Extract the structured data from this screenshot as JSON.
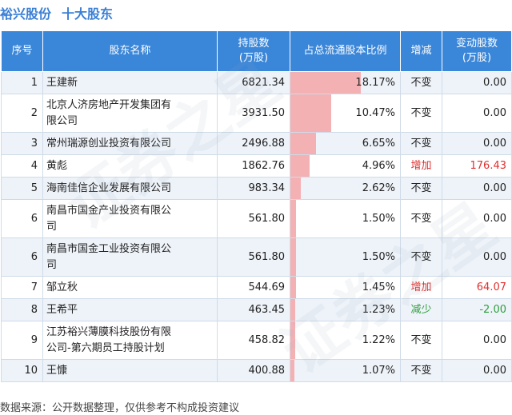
{
  "header": {
    "stock_name": "裕兴股份",
    "section_title": "十大股东"
  },
  "columns": [
    "序号",
    "股东名称",
    "持股数\n(万股)",
    "占总流通股本比例",
    "增减",
    "变动股数\n(万股)"
  ],
  "chart_data": {
    "type": "table",
    "rows": [
      {
        "rank": "1",
        "name": "王建新",
        "shares": "6821.34",
        "ratio": 18.17,
        "ratio_text": "18.17%",
        "change": "不变",
        "change_dir": "same",
        "delta": "0.00"
      },
      {
        "rank": "2",
        "name": "北京人济房地产开发集团有\n限公司",
        "shares": "3931.50",
        "ratio": 10.47,
        "ratio_text": "10.47%",
        "change": "不变",
        "change_dir": "same",
        "delta": "0.00"
      },
      {
        "rank": "3",
        "name": "常州瑞源创业投资有限公司",
        "shares": "2496.88",
        "ratio": 6.65,
        "ratio_text": "6.65%",
        "change": "不变",
        "change_dir": "same",
        "delta": "0.00"
      },
      {
        "rank": "4",
        "name": "黄彪",
        "shares": "1862.76",
        "ratio": 4.96,
        "ratio_text": "4.96%",
        "change": "增加",
        "change_dir": "up",
        "delta": "176.43"
      },
      {
        "rank": "5",
        "name": "海南佳信企业发展有限公司",
        "shares": "983.34",
        "ratio": 2.62,
        "ratio_text": "2.62%",
        "change": "不变",
        "change_dir": "same",
        "delta": "0.00"
      },
      {
        "rank": "6",
        "name": "南昌市国金产业投资有限公\n司",
        "shares": "561.80",
        "ratio": 1.5,
        "ratio_text": "1.50%",
        "change": "不变",
        "change_dir": "same",
        "delta": "0.00"
      },
      {
        "rank": "6",
        "name": "南昌市国金工业投资有限公\n司",
        "shares": "561.80",
        "ratio": 1.5,
        "ratio_text": "1.50%",
        "change": "不变",
        "change_dir": "same",
        "delta": "0.00"
      },
      {
        "rank": "7",
        "name": "邹立秋",
        "shares": "544.69",
        "ratio": 1.45,
        "ratio_text": "1.45%",
        "change": "增加",
        "change_dir": "up",
        "delta": "64.07"
      },
      {
        "rank": "8",
        "name": "王希平",
        "shares": "463.45",
        "ratio": 1.23,
        "ratio_text": "1.23%",
        "change": "减少",
        "change_dir": "down",
        "delta": "-2.00"
      },
      {
        "rank": "9",
        "name": "江苏裕兴薄膜科技股份有限\n公司-第六期员工持股计划",
        "shares": "458.82",
        "ratio": 1.22,
        "ratio_text": "1.22%",
        "change": "不变",
        "change_dir": "same",
        "delta": "0.00"
      },
      {
        "rank": "10",
        "name": "王慷",
        "shares": "400.88",
        "ratio": 1.07,
        "ratio_text": "1.07%",
        "change": "不变",
        "change_dir": "same",
        "delta": "0.00"
      }
    ]
  },
  "colors": {
    "header_bg": "#3a86d8",
    "title": "#3a7fd5",
    "bar": "#f4b1b4",
    "increase": "#e03030",
    "decrease": "#2e9e3e",
    "row_alt": "#eef3f9"
  },
  "footer": {
    "source": "数据来源：公开数据整理，仅供参考不构成投资建议"
  },
  "watermark": {
    "text": "证券之星"
  }
}
